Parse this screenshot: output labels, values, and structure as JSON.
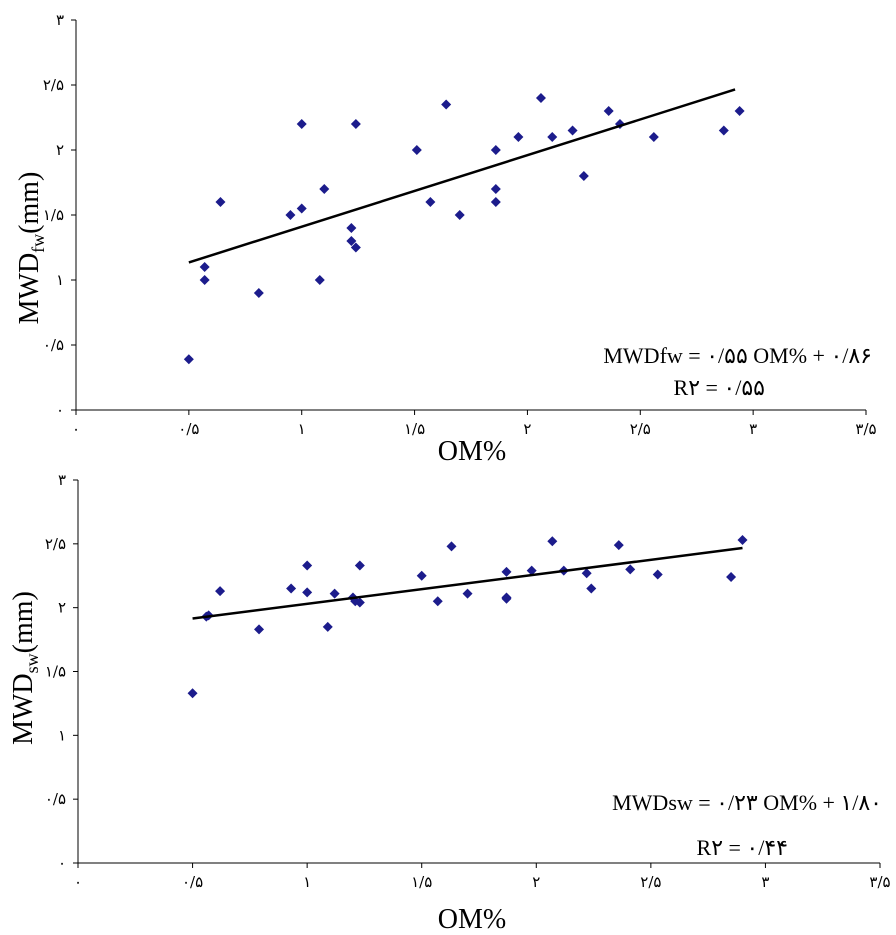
{
  "charts": [
    {
      "xlabel": "OM%",
      "ylabel_main": "MWD",
      "ylabel_sub": "fw",
      "ylabel_unit": "(mm)",
      "equation": "MWDfw = ۰/۵۵ OM% + ۰/۸۶",
      "r2": "R۲ = ۰/۵۵"
    },
    {
      "xlabel": "OM%",
      "ylabel_main": "MWD",
      "ylabel_sub": "sw",
      "ylabel_unit": "(mm)",
      "equation": "MWDsw = ۰/۲۳ OM% + ۱/۸۰",
      "r2": "R۲ = ۰/۴۴"
    }
  ],
  "chart_data": [
    {
      "type": "scatter",
      "xlabel": "OM%",
      "ylabel": "MWDfw (mm)",
      "xlim": [
        0,
        3.5
      ],
      "ylim": [
        0,
        3
      ],
      "x_ticks": [
        "۰",
        "۰/۵",
        "۱",
        "۱/۵",
        "۲",
        "۲/۵",
        "۳",
        "۳/۵"
      ],
      "y_ticks": [
        "۰",
        "۰/۵",
        "۱",
        "۱/۵",
        "۲",
        "۲/۵",
        "۳"
      ],
      "marker_color": "#1c1c8c",
      "points": [
        [
          0.5,
          0.39
        ],
        [
          0.57,
          1.0
        ],
        [
          0.57,
          1.1
        ],
        [
          0.64,
          1.6
        ],
        [
          0.81,
          0.9
        ],
        [
          0.95,
          1.5
        ],
        [
          1.0,
          2.2
        ],
        [
          1.0,
          1.55
        ],
        [
          1.08,
          1.0
        ],
        [
          1.1,
          1.7
        ],
        [
          1.22,
          1.4
        ],
        [
          1.22,
          1.3
        ],
        [
          1.24,
          1.25
        ],
        [
          1.24,
          2.2
        ],
        [
          1.51,
          2.0
        ],
        [
          1.57,
          1.6
        ],
        [
          1.64,
          2.35
        ],
        [
          1.7,
          1.5
        ],
        [
          1.86,
          2.0
        ],
        [
          1.86,
          1.7
        ],
        [
          1.86,
          1.6
        ],
        [
          1.96,
          2.1
        ],
        [
          2.06,
          2.4
        ],
        [
          2.11,
          2.1
        ],
        [
          2.2,
          2.15
        ],
        [
          2.25,
          1.8
        ],
        [
          2.36,
          2.3
        ],
        [
          2.41,
          2.2
        ],
        [
          2.56,
          2.1
        ],
        [
          2.87,
          2.15
        ],
        [
          2.94,
          2.3
        ]
      ],
      "trendline": {
        "slope": 0.55,
        "intercept": 0.86,
        "x_range": [
          0.5,
          2.92
        ]
      }
    },
    {
      "type": "scatter",
      "xlabel": "OM%",
      "ylabel": "MWDsw (mm)",
      "xlim": [
        0,
        3.5
      ],
      "ylim": [
        0,
        3
      ],
      "x_ticks": [
        "۰",
        "۰/۵",
        "۱",
        "۱/۵",
        "۲",
        "۲/۵",
        "۳",
        "۳/۵"
      ],
      "y_ticks": [
        "۰",
        "۰/۵",
        "۱",
        "۱/۵",
        "۲",
        "۲/۵",
        "۳"
      ],
      "marker_color": "#1c1c8c",
      "points": [
        [
          0.5,
          1.33
        ],
        [
          0.56,
          1.93
        ],
        [
          0.57,
          1.94
        ],
        [
          0.62,
          2.13
        ],
        [
          0.79,
          1.83
        ],
        [
          0.93,
          2.15
        ],
        [
          1.0,
          2.12
        ],
        [
          1.0,
          2.33
        ],
        [
          1.09,
          1.85
        ],
        [
          1.12,
          2.11
        ],
        [
          1.2,
          2.08
        ],
        [
          1.21,
          2.05
        ],
        [
          1.23,
          2.04
        ],
        [
          1.23,
          2.33
        ],
        [
          1.5,
          2.25
        ],
        [
          1.57,
          2.05
        ],
        [
          1.63,
          2.48
        ],
        [
          1.7,
          2.11
        ],
        [
          1.87,
          2.08
        ],
        [
          1.87,
          2.07
        ],
        [
          1.87,
          2.28
        ],
        [
          1.98,
          2.29
        ],
        [
          2.07,
          2.52
        ],
        [
          2.12,
          2.29
        ],
        [
          2.22,
          2.27
        ],
        [
          2.24,
          2.15
        ],
        [
          2.36,
          2.49
        ],
        [
          2.41,
          2.3
        ],
        [
          2.53,
          2.26
        ],
        [
          2.85,
          2.24
        ],
        [
          2.9,
          2.53
        ]
      ],
      "trendline": {
        "slope": 0.23,
        "intercept": 1.8,
        "x_range": [
          0.5,
          2.9
        ]
      }
    }
  ]
}
